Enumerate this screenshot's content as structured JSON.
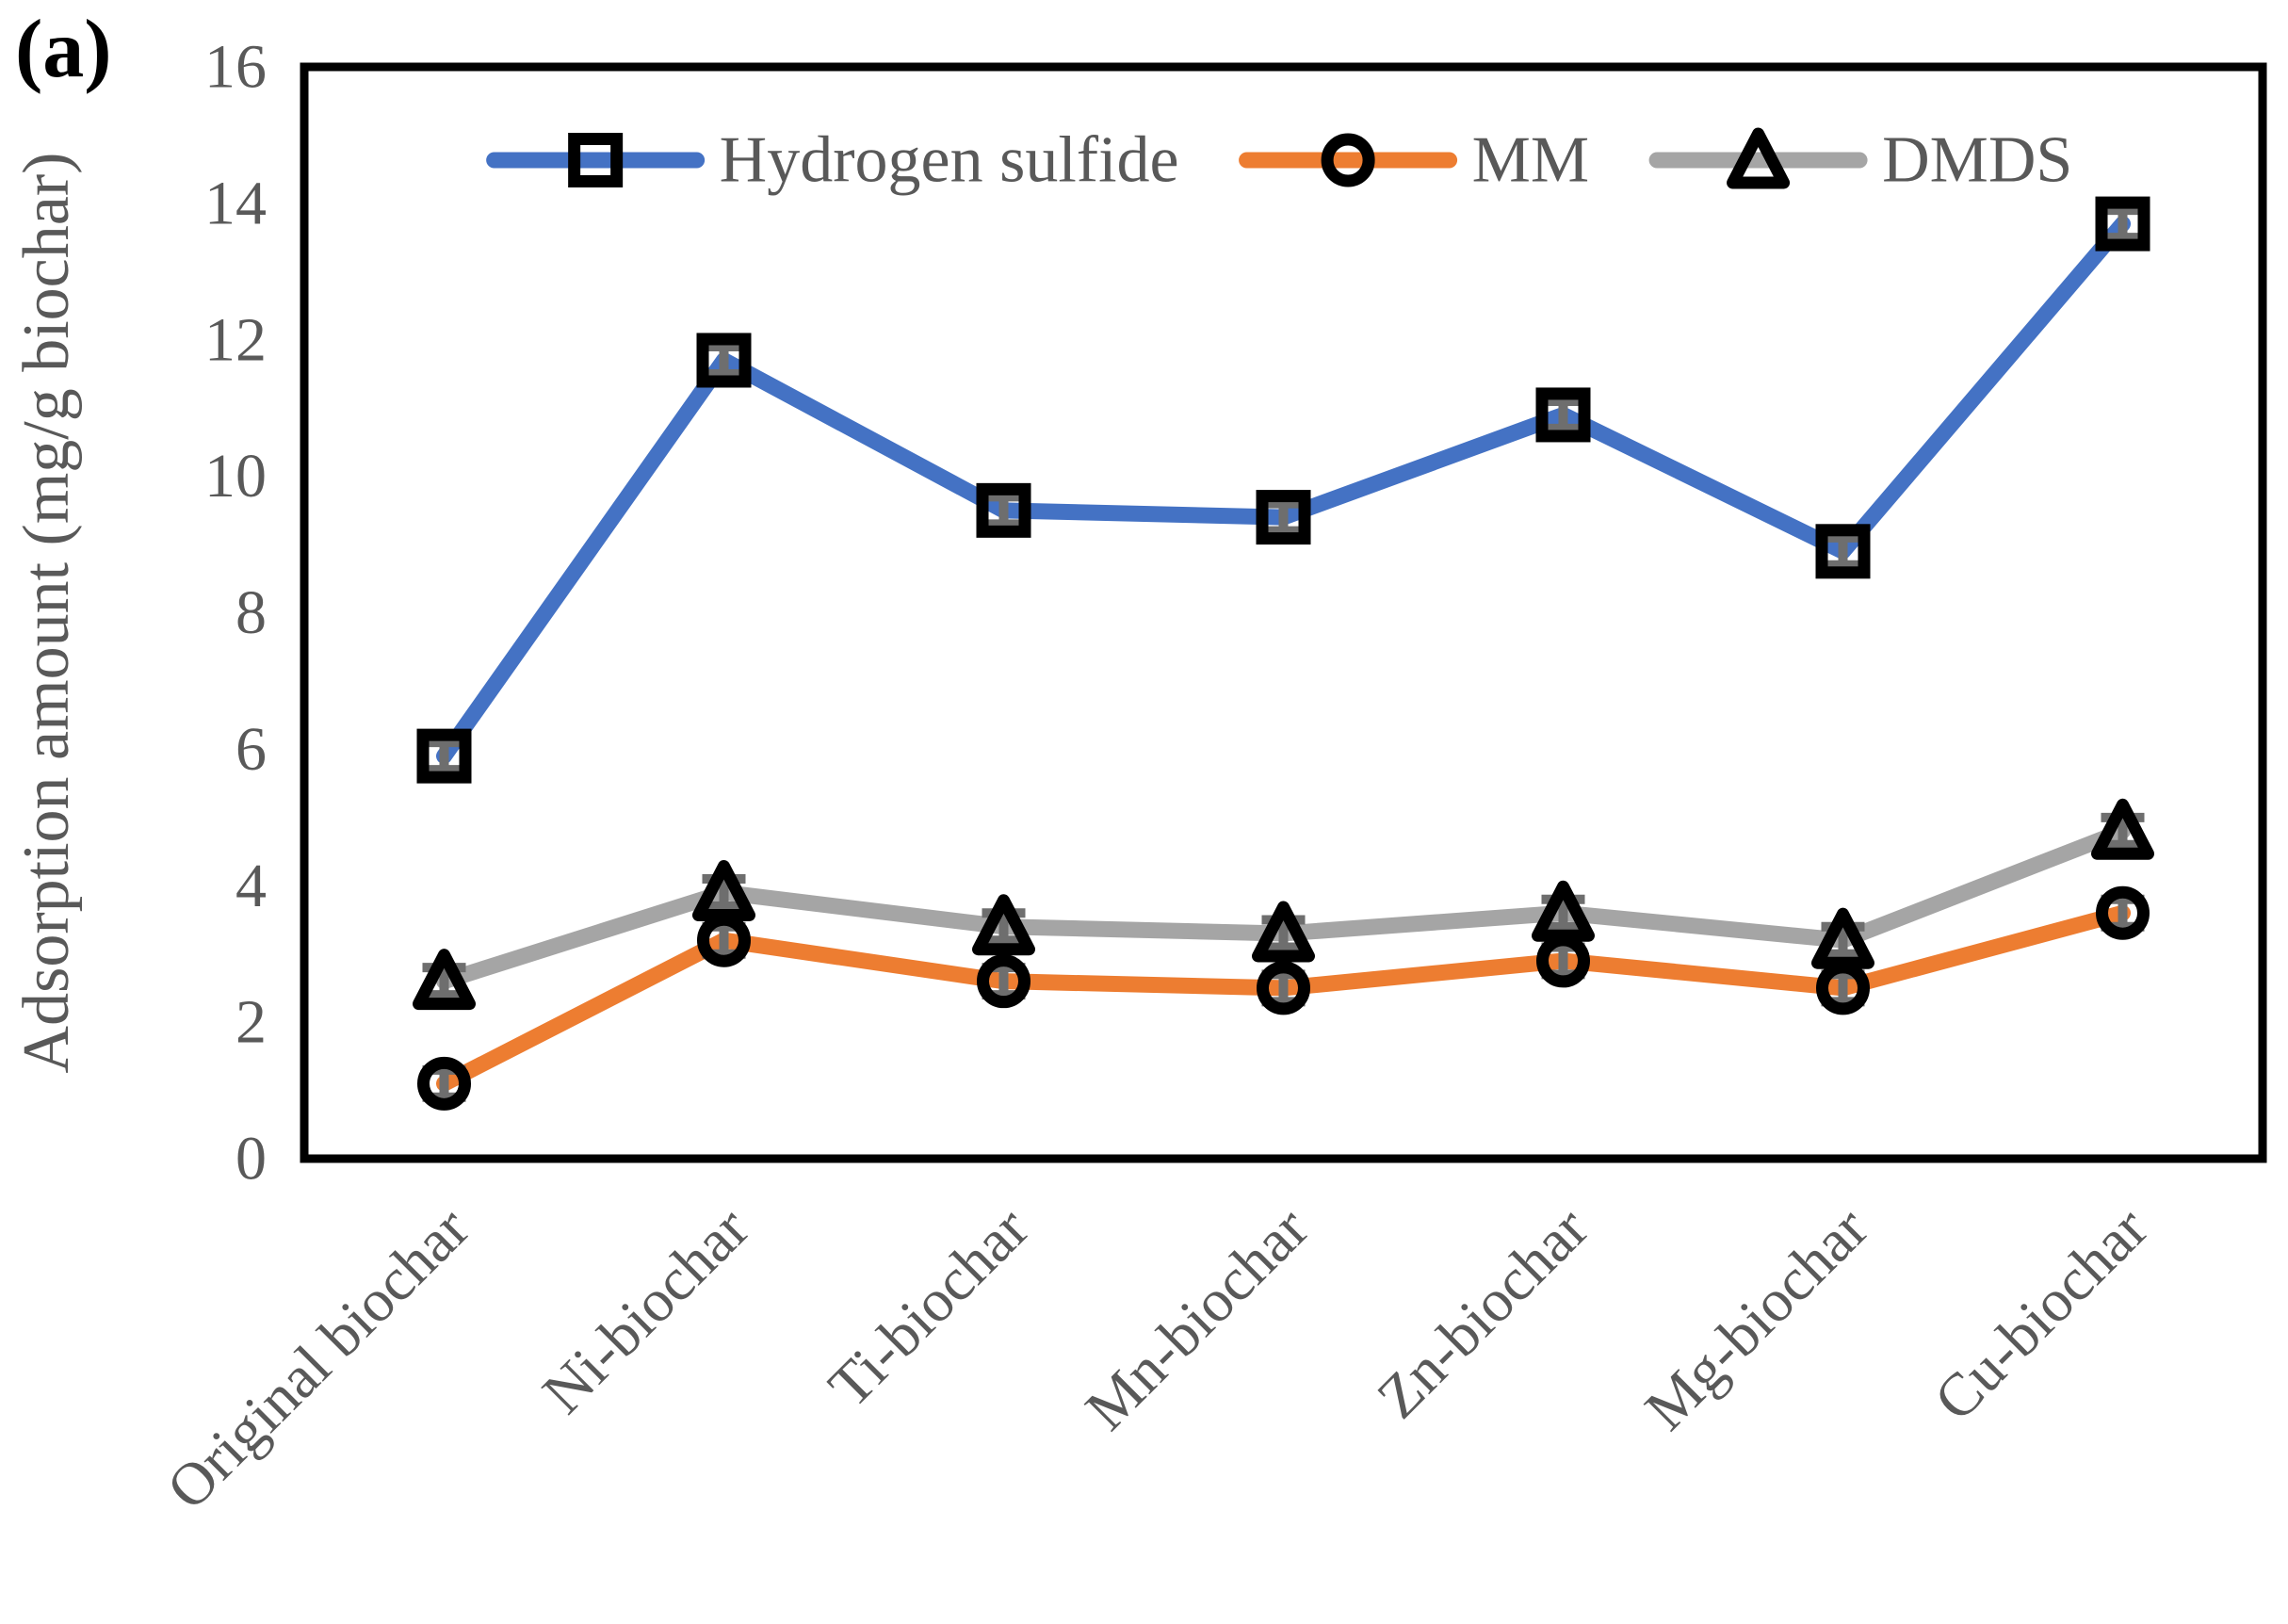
{
  "panel_label": "(a)",
  "chart_data": {
    "type": "line",
    "title": "",
    "xlabel": "",
    "ylabel": "Adsorption amount (mg/g biochar)",
    "categories": [
      "Original biochar",
      "Ni-biochar",
      "Ti-biochar",
      "Mn-biochar",
      "Zn-biochar",
      "Mg-biochar",
      "Cu-biochar"
    ],
    "series": [
      {
        "name": "Hydrogen sulfide",
        "color": "#4472C4",
        "marker": "square",
        "values": [
          5.9,
          11.7,
          9.5,
          9.4,
          10.9,
          8.9,
          13.7
        ]
      },
      {
        "name": "MM",
        "color": "#ED7D31",
        "marker": "circle",
        "values": [
          1.1,
          3.2,
          2.6,
          2.5,
          2.9,
          2.5,
          3.6
        ]
      },
      {
        "name": "DMDS",
        "color": "#A5A5A5",
        "marker": "triangle",
        "values": [
          2.6,
          3.9,
          3.4,
          3.3,
          3.6,
          3.2,
          4.8
        ]
      }
    ],
    "error_bar": 0.2,
    "ylim": [
      0,
      16
    ],
    "yticks": [
      0,
      2,
      4,
      6,
      8,
      10,
      12,
      14,
      16
    ],
    "grid": false,
    "legend_position": "top-inside",
    "marker_outline_color": "#000000",
    "error_bar_color": "#6e6e6e",
    "axis_line_color": "#000000",
    "axis_text_color": "#595959"
  }
}
